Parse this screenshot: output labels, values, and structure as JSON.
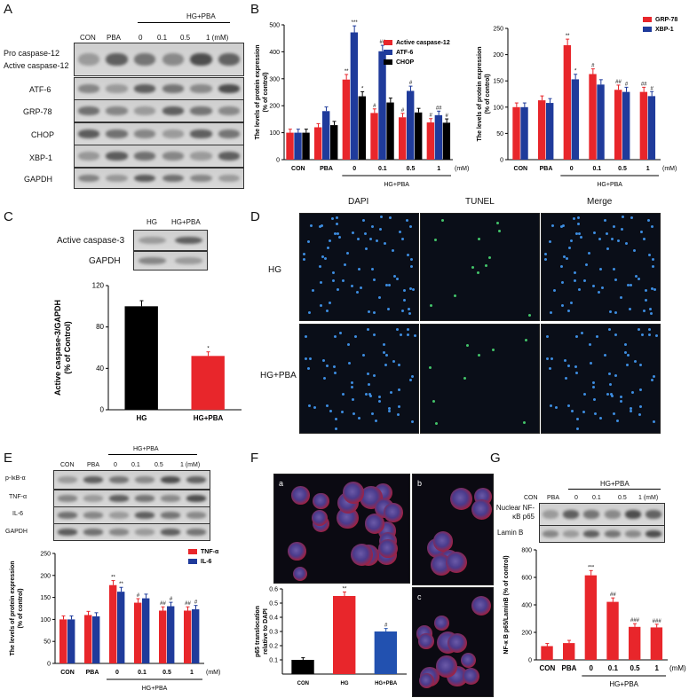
{
  "panels": {
    "A": {
      "letter": "A",
      "group_label": "HG+PBA",
      "lanes": [
        "CON",
        "PBA",
        "0",
        "0.1",
        "0.5",
        "1 (mM)"
      ],
      "rows": [
        "Pro caspase-12",
        "Active caspase-12",
        "ATF-6",
        "GRP-78",
        "CHOP",
        "XBP-1",
        "GAPDH"
      ]
    },
    "B": {
      "letter": "B"
    },
    "C": {
      "letter": "C",
      "lanes": [
        "HG",
        "HG+PBA"
      ],
      "rows": [
        "Active caspase-3",
        "GAPDH"
      ]
    },
    "D": {
      "letter": "D",
      "columns": [
        "DAPI",
        "TUNEL",
        "Merge"
      ],
      "rows": [
        "HG",
        "HG+PBA"
      ]
    },
    "E": {
      "letter": "E",
      "group_label": "HG+PBA",
      "lanes": [
        "CON",
        "PBA",
        "0",
        "0.1",
        "0.5",
        "1 (mM)"
      ],
      "rows": [
        "p-IκB-α",
        "TNF-α",
        "IL-6",
        "GAPDH"
      ]
    },
    "F": {
      "letter": "F",
      "sub": [
        "a",
        "b",
        "c"
      ]
    },
    "G": {
      "letter": "G",
      "group_label": "HG+PBA",
      "lanes": [
        "CON",
        "PBA",
        "0",
        "0.1",
        "0.5",
        "1 (mM)"
      ],
      "rows": [
        "Nuclear NF-κB p65",
        "Lamin B"
      ]
    }
  },
  "colors": {
    "red": "#e8262b",
    "blue": "#1f3b9b",
    "black": "#000000"
  },
  "chart_data": [
    {
      "id": "B1",
      "type": "bar",
      "categories": [
        "CON",
        "PBA",
        "0",
        "0.1",
        "0.5",
        "1"
      ],
      "unit_label": "(mM)",
      "group_label": "HG+PBA",
      "ylabel": "The levels of protein expression (% of control)",
      "ylim": [
        0,
        500
      ],
      "yticks": [
        0,
        100,
        200,
        300,
        400,
        500
      ],
      "legend_position": "top-right",
      "series": [
        {
          "name": "Active caspase-12",
          "color": "#e8262b",
          "values": [
            100,
            120,
            297,
            173,
            157,
            138
          ],
          "marks": [
            "",
            "",
            "**",
            "#",
            "#",
            "#"
          ]
        },
        {
          "name": "ATF-6",
          "color": "#1f3b9b",
          "values": [
            100,
            180,
            472,
            402,
            255,
            165
          ],
          "marks": [
            "",
            "",
            "***",
            "##",
            "#",
            "##"
          ]
        },
        {
          "name": "CHOP",
          "color": "#000000",
          "values": [
            100,
            128,
            235,
            212,
            175,
            137
          ],
          "marks": [
            "",
            "",
            "*",
            "",
            "",
            "#"
          ]
        }
      ]
    },
    {
      "id": "B2",
      "type": "bar",
      "categories": [
        "CON",
        "PBA",
        "0",
        "0.1",
        "0.5",
        "1"
      ],
      "unit_label": "(mM)",
      "group_label": "HG+PBA",
      "ylabel": "The levels of protein expression (% of control)",
      "ylim": [
        0,
        250
      ],
      "yticks": [
        0,
        50,
        100,
        150,
        200,
        250
      ],
      "legend_position": "top-right",
      "series": [
        {
          "name": "GRP-78",
          "color": "#e8262b",
          "values": [
            100,
            113,
            218,
            163,
            133,
            129
          ],
          "marks": [
            "",
            "",
            "**",
            "#",
            "##",
            "##"
          ]
        },
        {
          "name": "XBP-1",
          "color": "#1f3b9b",
          "values": [
            100,
            108,
            153,
            143,
            129,
            121
          ],
          "marks": [
            "",
            "",
            "*",
            "",
            "#",
            "#"
          ]
        }
      ]
    },
    {
      "id": "C",
      "type": "bar",
      "categories": [
        "HG",
        "HG+PBA"
      ],
      "ylabel": "Active caspase-3/GAPDH (% of Control)",
      "ylim": [
        0,
        120
      ],
      "yticks": [
        0,
        40,
        80,
        120
      ],
      "series": [
        {
          "name": "",
          "values": [
            100,
            52
          ],
          "colors": [
            "#000000",
            "#e8262b"
          ],
          "marks": [
            "",
            "*"
          ]
        }
      ]
    },
    {
      "id": "E",
      "type": "bar",
      "categories": [
        "CON",
        "PBA",
        "0",
        "0.1",
        "0.5",
        "1"
      ],
      "unit_label": "(mM)",
      "group_label": "HG+PBA",
      "ylabel": "The levels of protein expression (% of control)",
      "ylim": [
        0,
        250
      ],
      "yticks": [
        0,
        50,
        100,
        150,
        200,
        250
      ],
      "legend_position": "top-right",
      "series": [
        {
          "name": "TNF-α",
          "color": "#e8262b",
          "values": [
            100,
            110,
            178,
            138,
            120,
            120
          ],
          "marks": [
            "",
            "",
            "**",
            "#",
            "##",
            "##"
          ]
        },
        {
          "name": "IL-6",
          "color": "#1f3b9b",
          "values": [
            100,
            107,
            163,
            148,
            130,
            123
          ],
          "marks": [
            "",
            "",
            "**",
            "",
            "#",
            "#"
          ]
        }
      ]
    },
    {
      "id": "F",
      "type": "bar",
      "categories": [
        "CON",
        "HG",
        "HG+PBA"
      ],
      "ylabel": "p65 translocation relative to DAPI",
      "ylim": [
        0,
        0.6
      ],
      "yticks": [
        0.1,
        0.2,
        0.3,
        0.4,
        0.5,
        0.6
      ],
      "series": [
        {
          "name": "",
          "values": [
            0.1,
            0.55,
            0.3
          ],
          "colors": [
            "#000000",
            "#e8262b",
            "#2251b0"
          ],
          "marks": [
            "",
            "**",
            "#"
          ]
        }
      ]
    },
    {
      "id": "G",
      "type": "bar",
      "categories": [
        "CON",
        "PBA",
        "0",
        "0.1",
        "0.5",
        "1"
      ],
      "group_label": "HG+PBA",
      "unit_label": "(mM)",
      "ylabel": "NF-κ B p65/LaminB (% of control)",
      "ylim": [
        0,
        800
      ],
      "yticks": [
        0,
        200,
        400,
        600,
        800
      ],
      "series": [
        {
          "name": "",
          "color": "#e8262b",
          "values": [
            100,
            122,
            615,
            422,
            240,
            236
          ],
          "marks": [
            "",
            "",
            "***",
            "##",
            "###",
            "###"
          ]
        }
      ]
    }
  ]
}
